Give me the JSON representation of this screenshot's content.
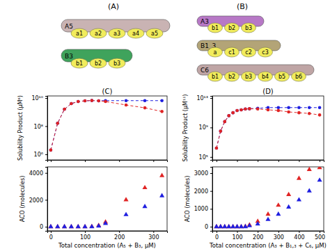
{
  "diagrams": [
    {
      "label": "(A)",
      "molecules": [
        {
          "name": "A5",
          "color": "#c9b3b3",
          "domains": [
            "a1",
            "a2",
            "a3",
            "a4",
            "a5"
          ]
        },
        {
          "name": "B3",
          "color": "#3fa35c",
          "domains": [
            "b1",
            "b2",
            "b3"
          ]
        }
      ]
    },
    {
      "label": "(B)",
      "molecules": [
        {
          "name": "A3",
          "color": "#b778c6",
          "domains": [
            "b1",
            "b2",
            "b3"
          ]
        },
        {
          "name": "B1_3",
          "color": "#b3a477",
          "domains": [
            "a",
            "c1",
            "c2",
            "c3"
          ]
        },
        {
          "name": "C6",
          "color": "#bfa5a5",
          "domains": [
            "b1",
            "b2",
            "b3",
            "b4",
            "b5",
            "b6"
          ]
        }
      ]
    }
  ],
  "chart_data": [
    {
      "type": "line",
      "title": "(C)",
      "y_label": "Solubility Product (μM⁸)",
      "log": "y",
      "tick_labels": "y",
      "x": [
        0,
        20,
        40,
        60,
        80,
        100,
        120,
        140,
        160,
        220,
        275,
        325
      ],
      "xlim": [
        -10,
        340
      ],
      "xticks": [
        0,
        100,
        200,
        300
      ],
      "ylim": [
        400000,
        14000000000
      ],
      "yticks": [
        {
          "value": 1000000,
          "label": "10⁶"
        },
        {
          "value": 100000000,
          "label": "10⁸"
        },
        {
          "value": 10000000000,
          "label": "10¹⁰"
        }
      ],
      "series": [
        {
          "color": "#1f1fe0",
          "marker": "circle",
          "line_style": "dashed",
          "values": [
            2000000,
            160000000,
            1600000000,
            4000000000,
            5600000000,
            6300000000,
            6600000000,
            6300000000,
            6500000000,
            6500000000,
            6500000000,
            6500000000
          ]
        },
        {
          "color": "#e02424",
          "marker": "circle",
          "line_style": "dashed",
          "values": [
            2000000,
            160000000,
            1600000000,
            4000000000,
            5600000000,
            6300000000,
            6600000000,
            6300000000,
            5600000000,
            3200000000,
            2000000000,
            1100000000
          ]
        }
      ]
    },
    {
      "type": "scatter",
      "x_label": "Total concentration (A₅ + B₃, μM)",
      "y_label": "ACO (molecules)",
      "x": [
        0,
        20,
        40,
        60,
        80,
        100,
        120,
        140,
        160,
        220,
        275,
        325
      ],
      "xlim": [
        -10,
        340
      ],
      "xticks": [
        0,
        100,
        200,
        300
      ],
      "ylim": [
        -300,
        4450
      ],
      "yticks": [
        0,
        2000,
        4000
      ],
      "series": [
        {
          "color": "#e02424",
          "marker": "triangle",
          "line_style": "none",
          "values": [
            0,
            0,
            0,
            0,
            0,
            0,
            20,
            100,
            350,
            2000,
            2900,
            3800
          ]
        },
        {
          "color": "#1f1fe0",
          "marker": "triangle",
          "line_style": "none",
          "values": [
            0,
            0,
            0,
            0,
            0,
            0,
            0,
            50,
            250,
            900,
            1500,
            2300
          ]
        }
      ]
    },
    {
      "type": "line",
      "title": "(D)",
      "y_label": "Solubility Product (μM¹¹)",
      "log": "y",
      "tick_labels": "y",
      "x": [
        0,
        20,
        40,
        60,
        80,
        100,
        120,
        140,
        160,
        200,
        250,
        300,
        350,
        400,
        450,
        500
      ],
      "xlim": [
        -20,
        520
      ],
      "xticks": [
        0,
        100,
        200,
        300,
        400,
        500
      ],
      "ylim": [
        40000,
        19000000000000
      ],
      "yticks": [
        {
          "value": 100000,
          "label": "10⁵"
        },
        {
          "value": 1000000000,
          "label": "10⁹"
        },
        {
          "value": 10000000000000,
          "label": "10¹³"
        }
      ],
      "series": [
        {
          "color": "#1f1fe0",
          "marker": "circle",
          "line_style": "dashed",
          "values": [
            1600000,
            320000000,
            6300000000,
            40000000000,
            100000000000,
            200000000000,
            250000000000,
            320000000000,
            350000000000,
            400000000000,
            500000000000,
            500000000000,
            500000000000,
            500000000000,
            500000000000,
            500000000000
          ]
        },
        {
          "color": "#e02424",
          "marker": "circle",
          "line_style": "dashed",
          "values": [
            1600000,
            320000000,
            6300000000,
            40000000000,
            100000000000,
            200000000000,
            250000000000,
            320000000000,
            350000000000,
            320000000000,
            250000000000,
            200000000000,
            130000000000,
            100000000000,
            80000000000,
            50000000000
          ]
        }
      ]
    },
    {
      "type": "scatter",
      "x_label": "Total concentration (A₃ + B₁,₃ + C₆, μM)",
      "y_label": "ACO (molecules)",
      "x": [
        0,
        20,
        40,
        60,
        80,
        100,
        120,
        140,
        160,
        200,
        250,
        300,
        350,
        400,
        450,
        500
      ],
      "xlim": [
        -20,
        520
      ],
      "xticks": [
        0,
        100,
        200,
        300,
        400,
        500
      ],
      "ylim": [
        -230,
        3350
      ],
      "yticks": [
        0,
        1000,
        2000,
        3000
      ],
      "series": [
        {
          "color": "#e02424",
          "marker": "triangle",
          "line_style": "none",
          "values": [
            0,
            0,
            0,
            0,
            0,
            0,
            0,
            20,
            100,
            300,
            700,
            1200,
            1800,
            2700,
            3200,
            3300
          ]
        },
        {
          "color": "#1f1fe0",
          "marker": "triangle",
          "line_style": "none",
          "values": [
            0,
            0,
            0,
            0,
            0,
            0,
            0,
            0,
            50,
            150,
            400,
            700,
            1100,
            1500,
            2000,
            2600
          ]
        }
      ]
    }
  ]
}
